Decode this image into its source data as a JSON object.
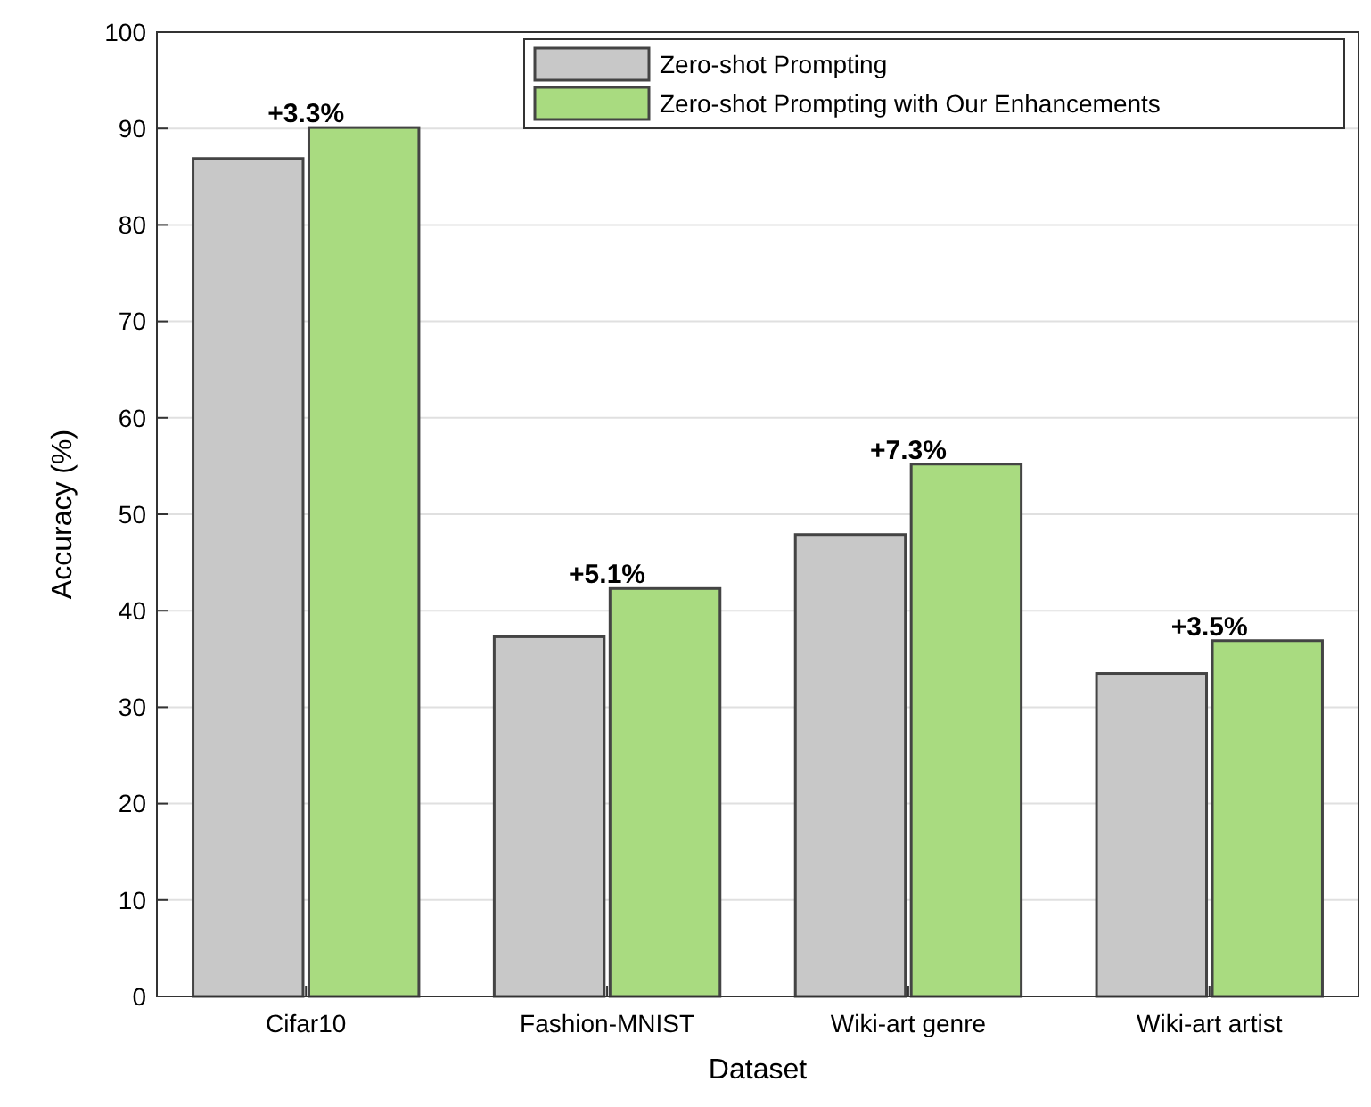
{
  "chart_data": {
    "type": "bar",
    "xlabel": "Dataset",
    "ylabel": "Accuracy (%)",
    "categories": [
      "Cifar10",
      "Fashion-MNIST",
      "Wiki-art genre",
      "Wiki-art artist"
    ],
    "series": [
      {
        "name": "Zero-shot Prompting",
        "color": "#c8c8c8",
        "values": [
          86.9,
          37.3,
          47.9,
          33.5
        ]
      },
      {
        "name": "Zero-shot Prompting with Our Enhancements",
        "color": "#a9db80",
        "values": [
          90.1,
          42.3,
          55.2,
          36.9
        ]
      }
    ],
    "ylim": [
      0,
      100
    ],
    "yticks": [
      0,
      10,
      20,
      30,
      40,
      50,
      60,
      70,
      80,
      90,
      100
    ],
    "grid": "y",
    "legend": "top right",
    "annotations": [
      {
        "text": "+3.3%",
        "x": "Cifar10",
        "y": 90.1
      },
      {
        "text": "+5.1%",
        "x": "Fashion-MNIST",
        "y": 42.3
      },
      {
        "text": "+7.3%",
        "x": "Wiki-art genre",
        "y": 55.2
      },
      {
        "text": "+3.5%",
        "x": "Wiki-art artist",
        "y": 36.9
      }
    ]
  }
}
